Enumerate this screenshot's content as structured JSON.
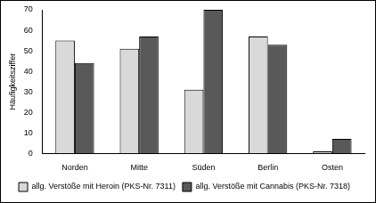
{
  "chart_data": {
    "type": "bar",
    "y_label": "Häufigkeitsziffer",
    "categories": [
      "Norden",
      "Mitte",
      "Süden",
      "Berlin",
      "Osten"
    ],
    "series": [
      {
        "name": "allg. Verstöße mit Heroin (PKS-Nr. 7311)",
        "color": "#d9d9d9",
        "values": [
          55,
          51,
          31,
          57,
          1
        ]
      },
      {
        "name": "allg. Verstöße mit Cannabis (PKS-Nr. 7318)",
        "color": "#595959",
        "values": [
          44,
          57,
          70,
          53,
          7
        ]
      }
    ],
    "ylim": [
      0,
      70
    ],
    "yticks": [
      0,
      10,
      20,
      30,
      40,
      50,
      60,
      70
    ],
    "grid": false,
    "legend": "bottom"
  }
}
